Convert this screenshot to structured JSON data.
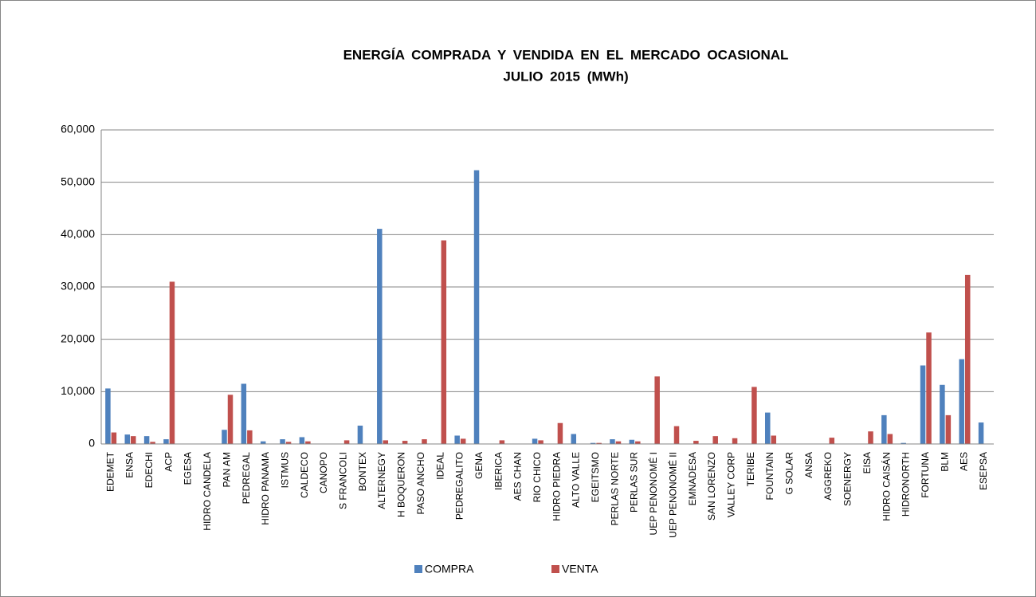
{
  "chart_data": {
    "type": "bar",
    "title": "ENERGÍA COMPRADA Y VENDIDA EN EL MERCADO OCASIONAL",
    "subtitle": "JULIO 2015 (MWh)",
    "categories": [
      "EDEMET",
      "ENSA",
      "EDECHI",
      "ACP",
      "EGESA",
      "HIDRO CANDELA",
      "PAN AM",
      "PEDREGAL",
      "HIDRO PANAMA",
      "ISTMUS",
      "CALDECO",
      "CANOPO",
      "S FRANCOLI",
      "BONTEX",
      "ALTERNEGY",
      "H BOQUERON",
      "PASO ANCHO",
      "IDEAL",
      "PEDREGALITO",
      "GENA",
      "IBERICA",
      "AES CHAN",
      "RIO CHICO",
      "HIDRO PIEDRA",
      "ALTO VALLE",
      "EGEITSMO",
      "PERLAS NORTE",
      "PERLAS SUR",
      "UEP PENONOMÉ I",
      "UEP PENONOMÉ II",
      "EMNADESA",
      "SAN LORENZO",
      "VALLEY CORP",
      "TERIBE",
      "FOUNTAIN",
      "G SOLAR",
      "ANSA",
      "AGGREKO",
      "SOENERGY",
      "EISA",
      "HIDRO CAISÁN",
      "HIDRONORTH",
      "FORTUNA",
      "BLM",
      "AES",
      "ESEPSA"
    ],
    "series": [
      {
        "name": "COMPRA",
        "color": "#4f81bd",
        "values": [
          10600,
          1800,
          1500,
          900,
          0,
          0,
          2700,
          11500,
          500,
          900,
          1300,
          0,
          0,
          3500,
          41100,
          0,
          0,
          0,
          1600,
          52300,
          0,
          0,
          1000,
          0,
          1900,
          200,
          900,
          800,
          0,
          0,
          0,
          0,
          0,
          0,
          6000,
          0,
          0,
          0,
          0,
          0,
          5500,
          200,
          15000,
          11300,
          16200,
          4100
        ]
      },
      {
        "name": "VENTA",
        "color": "#c0504d",
        "values": [
          2200,
          1500,
          400,
          31000,
          0,
          0,
          9400,
          2600,
          0,
          400,
          500,
          0,
          700,
          0,
          700,
          600,
          900,
          38900,
          1000,
          0,
          700,
          0,
          700,
          4000,
          0,
          200,
          500,
          500,
          12900,
          3400,
          600,
          1500,
          1100,
          10900,
          1600,
          0,
          0,
          1200,
          0,
          2400,
          1900,
          0,
          21300,
          5500,
          32300,
          0
        ]
      }
    ],
    "ylim": [
      0,
      60000
    ],
    "yticks": [
      0,
      {
        "value": 10000,
        "label": "10,000"
      },
      {
        "value": 20000,
        "label": "20,000"
      },
      {
        "value": 30000,
        "label": "30,000"
      },
      {
        "value": 40000,
        "label": "40,000"
      },
      {
        "value": 50000,
        "label": "50,000"
      },
      {
        "value": 60000,
        "label": "60,000"
      }
    ],
    "grid": true,
    "legend": "bottom"
  }
}
